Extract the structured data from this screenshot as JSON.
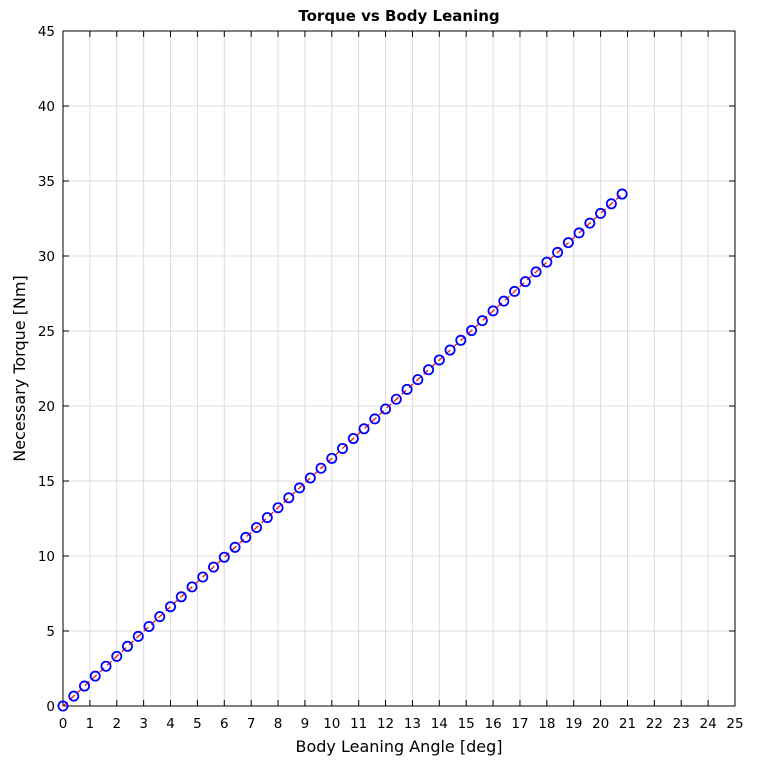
{
  "chart_data": {
    "type": "line",
    "title": "Torque vs Body Leaning",
    "xlabel": "Body Leaning Angle [deg]",
    "ylabel": "Necessary Torque [Nm]",
    "xlim": [
      0,
      25
    ],
    "ylim": [
      0,
      45
    ],
    "xticks": [
      0,
      1,
      2,
      3,
      4,
      5,
      6,
      7,
      8,
      9,
      10,
      11,
      12,
      13,
      14,
      15,
      16,
      17,
      18,
      19,
      20,
      21,
      22,
      23,
      24,
      25
    ],
    "yticks": [
      0,
      5,
      10,
      15,
      20,
      25,
      30,
      35,
      40,
      45
    ],
    "grid": true,
    "legend": "none",
    "series": [
      {
        "style": "dashed line with circle markers",
        "line_color": "#ff0000",
        "marker_color": "#0000ff",
        "x": [
          0,
          0.4,
          0.8,
          1.2,
          1.6,
          2.0,
          2.4,
          2.8,
          3.2,
          3.6,
          4.0,
          4.4,
          4.8,
          5.2,
          5.6,
          6.0,
          6.4,
          6.8,
          7.2,
          7.6,
          8.0,
          8.4,
          8.8,
          9.2,
          9.6,
          10.0,
          10.4,
          10.8,
          11.2,
          11.6,
          12.0,
          12.4,
          12.8,
          13.2,
          13.6,
          14.0,
          14.4,
          14.8,
          15.2,
          15.6,
          16.0,
          16.4,
          16.8,
          17.2,
          17.6,
          18.0,
          18.4,
          18.8,
          19.2,
          19.6,
          20.0,
          20.4,
          20.8
        ],
        "y": [
          0,
          0.66,
          1.33,
          1.99,
          2.65,
          3.31,
          3.98,
          4.64,
          5.3,
          5.96,
          6.62,
          7.28,
          7.94,
          8.6,
          9.26,
          9.92,
          10.58,
          11.24,
          11.9,
          12.56,
          13.22,
          13.88,
          14.54,
          15.2,
          15.85,
          16.51,
          17.17,
          17.83,
          18.48,
          19.14,
          19.8,
          20.45,
          21.11,
          21.76,
          22.42,
          23.07,
          23.73,
          24.38,
          25.03,
          25.69,
          26.34,
          26.99,
          27.64,
          28.29,
          28.94,
          29.59,
          30.24,
          30.89,
          31.54,
          32.19,
          32.84,
          33.48,
          34.13
        ]
      }
    ]
  }
}
